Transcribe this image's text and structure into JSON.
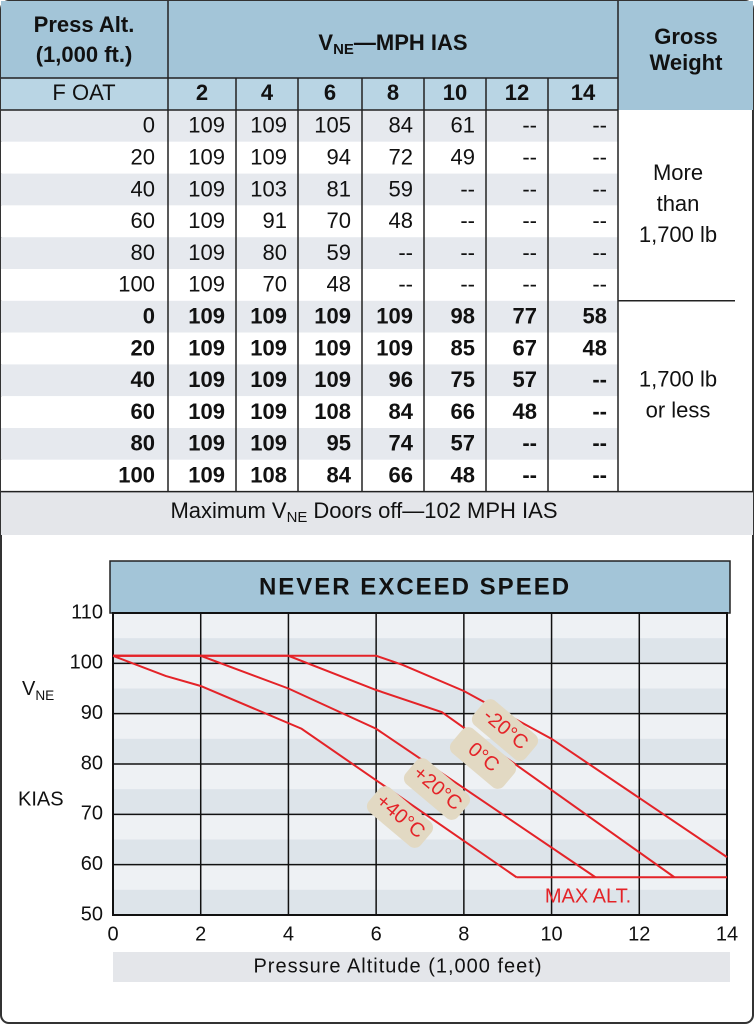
{
  "table": {
    "header": {
      "press_alt": [
        "Press Alt.",
        "(1,000 ft.)"
      ],
      "vne": {
        "symbol": "V",
        "subscript": "NE",
        "rest": "—MPH IAS"
      },
      "gross_weight": [
        "Gross",
        "Weight"
      ],
      "oat": "F OAT",
      "altitudes": [
        2,
        4,
        6,
        8,
        10,
        12,
        14
      ]
    },
    "groups": [
      {
        "weight": [
          "More",
          "than",
          "1,700 lb"
        ],
        "rows": [
          [
            0,
            109,
            109,
            105,
            84,
            61,
            "--",
            "--"
          ],
          [
            20,
            109,
            109,
            94,
            72,
            49,
            "--",
            "--"
          ],
          [
            40,
            109,
            103,
            81,
            59,
            "--",
            "--",
            "--"
          ],
          [
            60,
            109,
            91,
            70,
            48,
            "--",
            "--",
            "--"
          ],
          [
            80,
            109,
            80,
            59,
            "--",
            "--",
            "--",
            "--"
          ],
          [
            100,
            109,
            70,
            48,
            "--",
            "--",
            "--",
            "--"
          ]
        ]
      },
      {
        "weight": [
          "1,700 lb",
          "or less"
        ],
        "rows": [
          [
            0,
            109,
            109,
            109,
            109,
            98,
            77,
            58
          ],
          [
            20,
            109,
            109,
            109,
            109,
            85,
            67,
            48
          ],
          [
            40,
            109,
            109,
            109,
            96,
            75,
            57,
            "--"
          ],
          [
            60,
            109,
            109,
            108,
            84,
            66,
            48,
            "--"
          ],
          [
            80,
            109,
            109,
            95,
            74,
            57,
            "--",
            "--"
          ],
          [
            100,
            109,
            108,
            84,
            66,
            48,
            "--",
            "--"
          ]
        ]
      }
    ],
    "footer": {
      "pre": "Maximum V",
      "subscript": "NE",
      "post": "Doors off—102 MPH IAS"
    }
  },
  "chart_data": {
    "type": "line",
    "title": "NEVER EXCEED SPEED",
    "x_label": "Pressure Altitude (1,000 feet)",
    "y_label": {
      "symbol": "V",
      "subscript": "NE",
      "unit": "KIAS"
    },
    "xlim": [
      0,
      14
    ],
    "xticks": [
      0,
      2,
      4,
      6,
      8,
      10,
      12,
      14
    ],
    "ylim": [
      50,
      110
    ],
    "yticks": [
      50,
      60,
      70,
      80,
      90,
      100,
      110
    ],
    "grid": true,
    "color": "#e42328",
    "series": [
      {
        "name": "-20°C",
        "x": [
          0,
          6,
          6.6,
          8,
          10,
          14
        ],
        "values": [
          101.5,
          101.5,
          99.7,
          94.5,
          85,
          61.5
        ]
      },
      {
        "name": "0°C",
        "x": [
          0,
          4,
          6,
          7.5,
          12.8
        ],
        "values": [
          101.5,
          101.5,
          94.7,
          90.3,
          57.5
        ]
      },
      {
        "name": "+20°C",
        "x": [
          0,
          2,
          4,
          6,
          11
        ],
        "values": [
          101.5,
          101.5,
          95,
          87,
          57.5
        ]
      },
      {
        "name": "+40°C",
        "x": [
          0,
          1.2,
          2,
          4.3,
          9.2
        ],
        "values": [
          101.5,
          97.5,
          95.5,
          87,
          57.5
        ]
      },
      {
        "name": "MAX ALT.",
        "x": [
          9.2,
          14
        ],
        "values": [
          57.5,
          57.5
        ]
      }
    ]
  }
}
